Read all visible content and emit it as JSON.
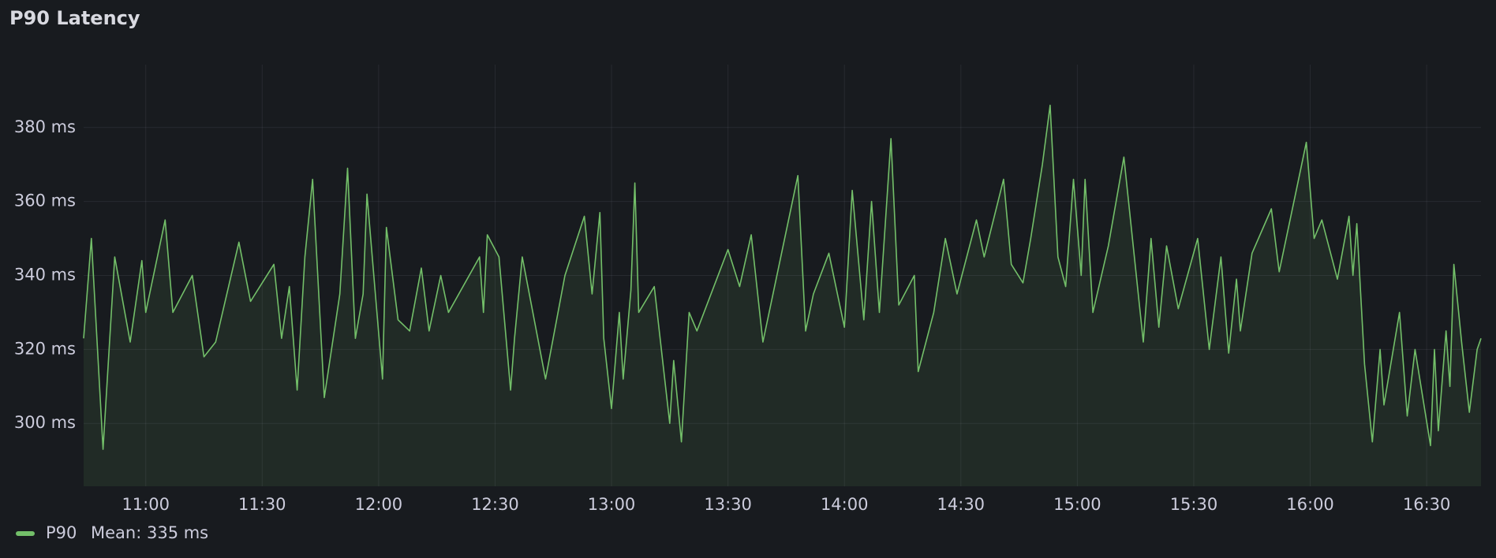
{
  "chart_data": {
    "type": "line",
    "title": "P90 Latency",
    "x": [
      "10:44",
      "10:46",
      "10:49",
      "10:52",
      "10:56",
      "10:59",
      "11:00",
      "11:05",
      "11:07",
      "11:12",
      "11:15",
      "11:18",
      "11:24",
      "11:27",
      "11:33",
      "11:35",
      "11:37",
      "11:39",
      "11:41",
      "11:43",
      "11:46",
      "11:50",
      "11:52",
      "11:54",
      "11:56",
      "11:57",
      "12:01",
      "12:02",
      "12:05",
      "12:08",
      "12:11",
      "12:13",
      "12:16",
      "12:18",
      "12:26",
      "12:27",
      "12:28",
      "12:31",
      "12:34",
      "12:35",
      "12:37",
      "12:43",
      "12:48",
      "12:53",
      "12:55",
      "12:57",
      "12:58",
      "13:00",
      "13:02",
      "13:03",
      "13:05",
      "13:06",
      "13:07",
      "13:11",
      "13:15",
      "13:16",
      "13:18",
      "13:20",
      "13:22",
      "13:30",
      "13:33",
      "13:36",
      "13:39",
      "13:48",
      "13:50",
      "13:52",
      "13:56",
      "14:00",
      "14:02",
      "14:05",
      "14:07",
      "14:09",
      "14:12",
      "14:14",
      "14:18",
      "14:19",
      "14:23",
      "14:26",
      "14:29",
      "14:34",
      "14:36",
      "14:41",
      "14:43",
      "14:46",
      "14:48",
      "14:51",
      "14:53",
      "14:55",
      "14:57",
      "14:59",
      "15:01",
      "15:02",
      "15:04",
      "15:08",
      "15:12",
      "15:17",
      "15:19",
      "15:21",
      "15:23",
      "15:26",
      "15:31",
      "15:34",
      "15:37",
      "15:39",
      "15:41",
      "15:42",
      "15:45",
      "15:50",
      "15:52",
      "15:56",
      "15:59",
      "16:01",
      "16:03",
      "16:07",
      "16:10",
      "16:11",
      "16:12",
      "16:14",
      "16:16",
      "16:18",
      "16:19",
      "16:23",
      "16:25",
      "16:27",
      "16:31",
      "16:32",
      "16:33",
      "16:35",
      "16:36",
      "16:37",
      "16:39",
      "16:41",
      "16:43",
      "16:44"
    ],
    "series": [
      {
        "name": "P90",
        "color": "#73bf69",
        "values": [
          323,
          350,
          293,
          345,
          322,
          344,
          330,
          355,
          330,
          340,
          318,
          322,
          349,
          333,
          343,
          323,
          337,
          309,
          345,
          366,
          307,
          335,
          369,
          323,
          335,
          362,
          312,
          353,
          328,
          325,
          342,
          325,
          340,
          330,
          345,
          330,
          351,
          345,
          309,
          323,
          345,
          312,
          340,
          356,
          335,
          357,
          323,
          304,
          330,
          312,
          336,
          365,
          330,
          337,
          300,
          317,
          295,
          330,
          325,
          347,
          337,
          351,
          322,
          367,
          325,
          335,
          346,
          326,
          363,
          328,
          360,
          330,
          377,
          332,
          340,
          314,
          330,
          350,
          335,
          355,
          345,
          366,
          343,
          338,
          350,
          370,
          386,
          345,
          337,
          366,
          340,
          366,
          330,
          348,
          372,
          322,
          350,
          326,
          348,
          331,
          350,
          320,
          345,
          319,
          339,
          325,
          346,
          358,
          341,
          361,
          376,
          350,
          355,
          339,
          356,
          340,
          354,
          316,
          295,
          320,
          305,
          330,
          302,
          320,
          294,
          320,
          298,
          325,
          310,
          343,
          322,
          303,
          320,
          323
        ],
        "legend_calcs": [
          "Mean: 335 ms"
        ]
      }
    ],
    "xlim": [
      "10:44",
      "16:44"
    ],
    "xticks": [
      "11:00",
      "11:30",
      "12:00",
      "12:30",
      "13:00",
      "13:30",
      "14:00",
      "14:30",
      "15:00",
      "15:30",
      "16:00",
      "16:30"
    ],
    "ylim": [
      283,
      397
    ],
    "yticks": [
      {
        "value": 300,
        "label": "300 ms"
      },
      {
        "value": 320,
        "label": "320 ms"
      },
      {
        "value": 340,
        "label": "340 ms"
      },
      {
        "value": 360,
        "label": "360 ms"
      },
      {
        "value": 380,
        "label": "380 ms"
      }
    ],
    "grid": true
  }
}
